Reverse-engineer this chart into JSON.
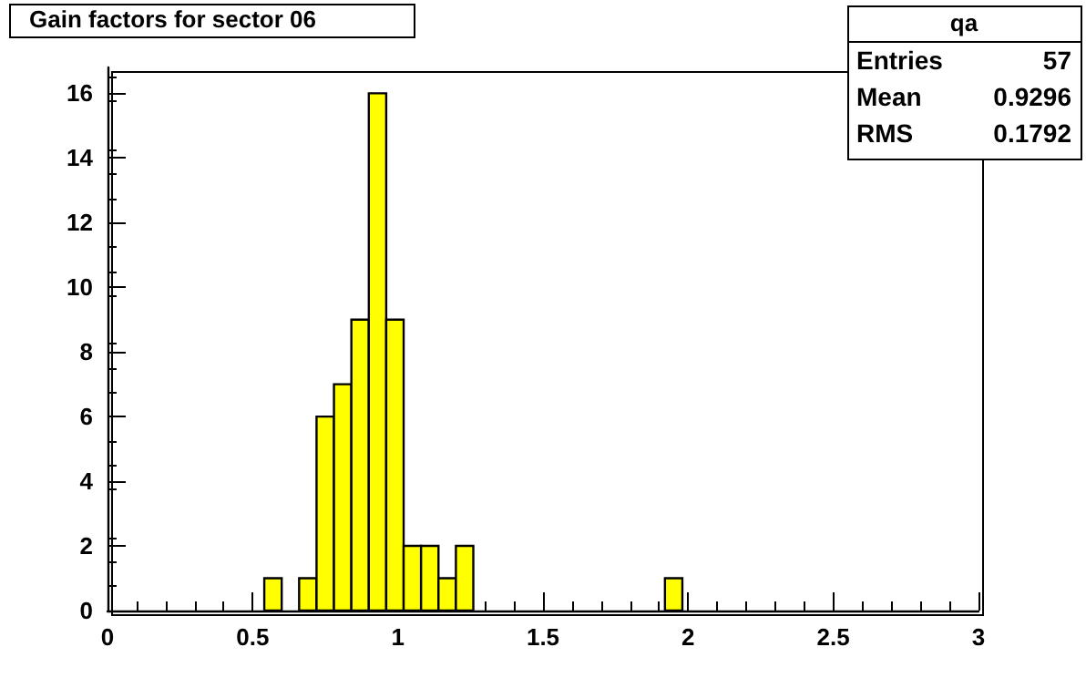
{
  "chart_data": {
    "type": "histogram",
    "title": "Gain factors for sector 06",
    "bins": [
      0,
      0.06,
      0.12,
      0.18,
      0.24,
      0.3,
      0.36,
      0.42,
      0.48,
      0.54,
      0.6,
      0.66,
      0.72,
      0.78,
      0.84,
      0.9,
      0.96,
      1.02,
      1.08,
      1.14,
      1.2,
      1.26,
      1.32,
      1.38,
      1.44,
      1.5,
      1.56,
      1.62,
      1.68,
      1.74,
      1.8,
      1.86,
      1.92,
      1.98,
      2.04,
      2.1,
      2.16,
      2.22,
      2.28,
      2.34,
      2.4,
      2.46,
      2.52,
      2.58,
      2.64,
      2.7,
      2.76,
      2.82,
      2.88,
      2.94,
      3
    ],
    "values": [
      0,
      0,
      0,
      0,
      0,
      0,
      0,
      0,
      0,
      1,
      0,
      1,
      6,
      7,
      9,
      16,
      9,
      2,
      2,
      1,
      2,
      0,
      0,
      0,
      0,
      0,
      0,
      0,
      0,
      0,
      0,
      0,
      1,
      0,
      0,
      0,
      0,
      0,
      0,
      0,
      0,
      0,
      0,
      0,
      0,
      0,
      0,
      0,
      0,
      0
    ],
    "color": "#ffff00",
    "xlim": [
      0,
      3
    ],
    "xticks": [
      0,
      0.5,
      1,
      1.5,
      2,
      2.5,
      3
    ],
    "ylim": [
      0,
      16.8
    ],
    "yticks": [
      0,
      2,
      4,
      6,
      8,
      10,
      12,
      14,
      16
    ],
    "grid": false,
    "annotations": [
      "qa",
      "Entries",
      "57",
      "Mean",
      "0.9296",
      "RMS",
      "0.1792"
    ]
  }
}
